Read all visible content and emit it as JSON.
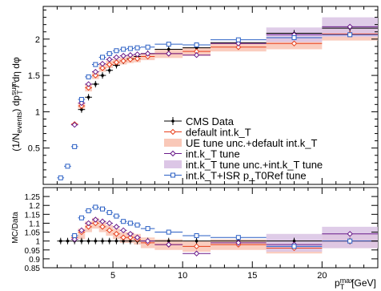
{
  "chart_data": [
    {
      "type": "line",
      "panel": "main",
      "xlabel": "p_T^max [GeV]",
      "ylabel": "(1/N_events) dp_T^sum / dη dφ",
      "xlim": [
        0,
        24
      ],
      "ylim": [
        0,
        2.45
      ],
      "yticks": [
        0.5,
        1,
        1.5,
        2
      ],
      "xticks": [
        5,
        10,
        15,
        20
      ],
      "legend_position": "center-right",
      "legend": [
        "CMS Data",
        "default int.k_T",
        "UE tune unc.+default int.k_T",
        "int.k_T tune",
        "int.k_T tune unc.+int.k_T tune",
        "int.k_T+ISR p_T0Ref tune"
      ],
      "bins": [
        [
          1.0,
          1.5
        ],
        [
          1.5,
          2.0
        ],
        [
          2.0,
          2.5
        ],
        [
          2.5,
          3.0
        ],
        [
          3.0,
          3.5
        ],
        [
          3.5,
          4.0
        ],
        [
          4.0,
          4.5
        ],
        [
          4.5,
          5.0
        ],
        [
          5.0,
          5.5
        ],
        [
          5.5,
          6.0
        ],
        [
          6.0,
          6.5
        ],
        [
          6.5,
          7.0
        ],
        [
          7.0,
          8.0
        ],
        [
          8.0,
          10.0
        ],
        [
          10.0,
          12.0
        ],
        [
          12.0,
          16.0
        ],
        [
          16.0,
          20.0
        ],
        [
          20.0,
          24.0
        ]
      ],
      "series": [
        {
          "name": "CMS Data",
          "color": "#000000",
          "marker": "dot",
          "values": [
            null,
            null,
            null,
            1.03,
            1.2,
            1.38,
            1.5,
            1.57,
            1.64,
            1.7,
            1.73,
            1.76,
            1.8,
            1.86,
            1.88,
            1.95,
            2.08,
            2.15
          ]
        },
        {
          "name": "default int.k_T",
          "color": "#e8401c",
          "marker": "diamond",
          "values": [
            null,
            null,
            0.83,
            1.08,
            1.33,
            1.5,
            1.6,
            1.65,
            1.68,
            1.7,
            1.72,
            1.73,
            1.76,
            1.8,
            1.83,
            1.89,
            1.94,
            2.07
          ]
        },
        {
          "name": "int.k_T tune",
          "color": "#6a1b8a",
          "marker": "diamond",
          "values": [
            null,
            null,
            0.82,
            1.12,
            1.38,
            1.55,
            1.66,
            1.72,
            1.75,
            1.77,
            1.78,
            1.79,
            1.8,
            1.8,
            1.78,
            1.94,
            2.06,
            2.17
          ]
        },
        {
          "name": "int.k_T+ISR p_T0Ref tune",
          "color": "#2a5fc4",
          "marker": "square",
          "values": [
            0.09,
            0.25,
            0.52,
            1.17,
            1.48,
            1.65,
            1.75,
            1.8,
            1.84,
            1.86,
            1.87,
            1.88,
            1.89,
            1.93,
            1.92,
            1.99,
            2.02,
            2.06
          ]
        }
      ],
      "bands": [
        {
          "name": "UE tune unc.+default int.k_T",
          "color": "#f9c8b8",
          "low": [
            null,
            null,
            null,
            1.04,
            1.28,
            1.45,
            1.55,
            1.6,
            1.63,
            1.65,
            1.67,
            1.68,
            1.71,
            1.74,
            1.77,
            1.83,
            1.86,
            1.98
          ],
          "high": [
            null,
            null,
            null,
            1.12,
            1.38,
            1.55,
            1.65,
            1.7,
            1.73,
            1.75,
            1.77,
            1.78,
            1.81,
            1.86,
            1.89,
            1.95,
            2.02,
            2.16
          ]
        },
        {
          "name": "int.k_T tune unc.+int.k_T tune",
          "color": "#dcc6e6",
          "low": [
            null,
            null,
            null,
            null,
            null,
            null,
            null,
            null,
            null,
            null,
            null,
            null,
            null,
            null,
            null,
            null,
            1.96,
            2.03
          ],
          "high": [
            null,
            null,
            null,
            null,
            null,
            null,
            null,
            null,
            null,
            null,
            null,
            null,
            null,
            null,
            null,
            null,
            2.16,
            2.3
          ]
        }
      ]
    },
    {
      "type": "line",
      "panel": "ratio",
      "ylabel": "MC/Data",
      "xlim": [
        0,
        24
      ],
      "ylim": [
        0.85,
        1.3
      ],
      "yticks": [
        0.85,
        0.9,
        0.95,
        1,
        1.05,
        1.1,
        1.15,
        1.2,
        1.25
      ],
      "xticks": [
        5,
        10,
        15,
        20
      ],
      "bins": [
        [
          1.0,
          1.5
        ],
        [
          1.5,
          2.0
        ],
        [
          2.0,
          2.5
        ],
        [
          2.5,
          3.0
        ],
        [
          3.0,
          3.5
        ],
        [
          3.5,
          4.0
        ],
        [
          4.0,
          4.5
        ],
        [
          4.5,
          5.0
        ],
        [
          5.0,
          5.5
        ],
        [
          5.5,
          6.0
        ],
        [
          6.0,
          6.5
        ],
        [
          6.5,
          7.0
        ],
        [
          7.0,
          8.0
        ],
        [
          8.0,
          10.0
        ],
        [
          10.0,
          12.0
        ],
        [
          12.0,
          16.0
        ],
        [
          16.0,
          20.0
        ],
        [
          20.0,
          24.0
        ]
      ],
      "series": [
        {
          "name": "CMS Data",
          "color": "#000000",
          "marker": "dot",
          "values": [
            1.0,
            1.0,
            1.0,
            1.0,
            1.0,
            1.0,
            1.0,
            1.0,
            1.0,
            1.0,
            1.0,
            1.0,
            1.0,
            1.0,
            1.0,
            1.0,
            1.0,
            1.0
          ]
        },
        {
          "name": "default int.k_T",
          "color": "#e8401c",
          "marker": "diamond",
          "values": [
            null,
            null,
            1.02,
            1.05,
            1.08,
            1.1,
            1.08,
            1.06,
            1.04,
            1.02,
            1.02,
            1.01,
            0.99,
            0.98,
            0.97,
            0.98,
            0.96,
            1.0
          ]
        },
        {
          "name": "int.k_T tune",
          "color": "#6a1b8a",
          "marker": "diamond",
          "values": [
            null,
            null,
            1.01,
            1.06,
            1.1,
            1.12,
            1.11,
            1.1,
            1.08,
            1.06,
            1.04,
            1.02,
            1.0,
            0.98,
            0.93,
            0.99,
            0.98,
            1.04
          ]
        },
        {
          "name": "int.k_T+ISR p_T0Ref tune",
          "color": "#2a5fc4",
          "marker": "square",
          "values": [
            null,
            null,
            1.03,
            1.13,
            1.17,
            1.19,
            1.18,
            1.16,
            1.14,
            1.11,
            1.1,
            1.09,
            1.07,
            1.05,
            1.03,
            1.02,
            0.97,
            1.0
          ]
        }
      ],
      "bands": [
        {
          "name": "UE tune unc.+default int.k_T",
          "color": "#f9c8b8",
          "low": [
            null,
            null,
            null,
            1.01,
            1.05,
            1.07,
            1.05,
            1.03,
            1.01,
            0.99,
            0.99,
            0.98,
            0.96,
            0.95,
            0.94,
            0.95,
            0.93,
            0.96
          ],
          "high": [
            null,
            null,
            null,
            1.07,
            1.11,
            1.13,
            1.11,
            1.09,
            1.07,
            1.05,
            1.05,
            1.04,
            1.02,
            1.01,
            1.0,
            1.01,
            0.99,
            1.04
          ]
        },
        {
          "name": "int.k_T tune unc.+int.k_T tune",
          "color": "#dcc6e6",
          "low": [
            null,
            null,
            null,
            null,
            null,
            null,
            null,
            null,
            null,
            null,
            null,
            null,
            null,
            null,
            null,
            null,
            0.94,
            0.96
          ],
          "high": [
            null,
            null,
            null,
            null,
            null,
            null,
            null,
            null,
            null,
            null,
            null,
            null,
            null,
            null,
            null,
            null,
            1.04,
            1.08
          ]
        }
      ]
    }
  ]
}
